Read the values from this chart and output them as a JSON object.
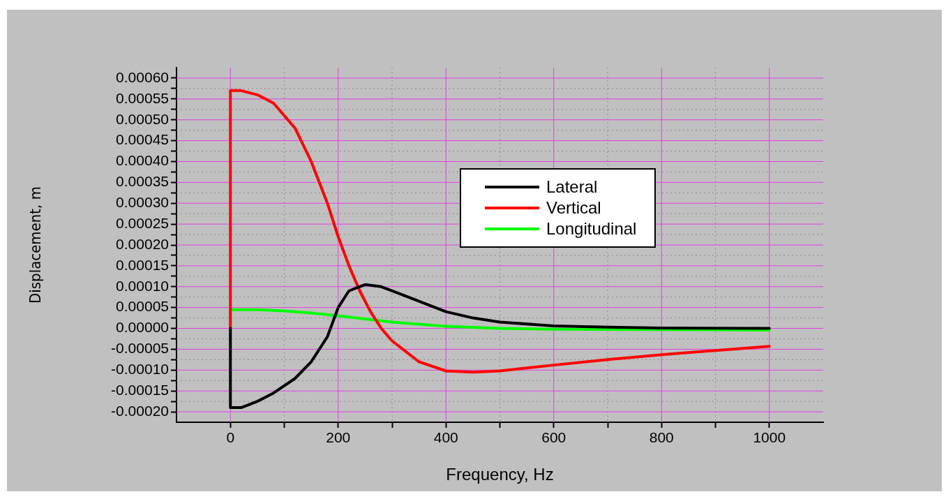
{
  "chart_data": {
    "type": "line",
    "xlabel": "Frequency, Hz",
    "ylabel": "Displacement, m",
    "xlim": [
      -100,
      1100
    ],
    "xticks": [
      0,
      {
        "value": 100,
        "label": null
      },
      200,
      {
        "value": 300,
        "label": null
      },
      400,
      {
        "value": 500,
        "label": null
      },
      600,
      {
        "value": 700,
        "label": null
      },
      800,
      {
        "value": 900,
        "label": null
      },
      1000
    ],
    "ylim": [
      -0.000225,
      0.000625
    ],
    "yticks": [
      {
        "value": -0.0002,
        "label": "-0.00020"
      },
      {
        "value": -0.000175,
        "label": null
      },
      {
        "value": -0.00015,
        "label": "-0.00015"
      },
      {
        "value": -0.000125,
        "label": null
      },
      {
        "value": -0.0001,
        "label": "-0.00010"
      },
      {
        "value": -7.5e-05,
        "label": null
      },
      {
        "value": -5e-05,
        "label": "-0.00005"
      },
      {
        "value": -2.5e-05,
        "label": null
      },
      {
        "value": 0,
        "label": "0.00000"
      },
      {
        "value": 2.5e-05,
        "label": null
      },
      {
        "value": 5e-05,
        "label": "0.00005"
      },
      {
        "value": 7.5e-05,
        "label": null
      },
      {
        "value": 0.0001,
        "label": "0.00010"
      },
      {
        "value": 0.000125,
        "label": null
      },
      {
        "value": 0.00015,
        "label": "0.00015"
      },
      {
        "value": 0.000175,
        "label": null
      },
      {
        "value": 0.0002,
        "label": "0.00020"
      },
      {
        "value": 0.000225,
        "label": null
      },
      {
        "value": 0.00025,
        "label": "0.00025"
      },
      {
        "value": 0.000275,
        "label": null
      },
      {
        "value": 0.0003,
        "label": "0.00030"
      },
      {
        "value": 0.000325,
        "label": null
      },
      {
        "value": 0.00035,
        "label": "0.00035"
      },
      {
        "value": 0.000375,
        "label": null
      },
      {
        "value": 0.0004,
        "label": "0.00040"
      },
      {
        "value": 0.000425,
        "label": null
      },
      {
        "value": 0.00045,
        "label": "0.00045"
      },
      {
        "value": 0.000475,
        "label": null
      },
      {
        "value": 0.0005,
        "label": "0.00050"
      },
      {
        "value": 0.000525,
        "label": null
      },
      {
        "value": 0.00055,
        "label": "0.00055"
      },
      {
        "value": 0.000575,
        "label": null
      },
      {
        "value": 0.0006,
        "label": "0.00060"
      }
    ],
    "grid": true,
    "legend": "right",
    "marker": "none",
    "line_style": "solid",
    "series": [
      {
        "name": "Lateral",
        "color": "#000000",
        "x": [
          0,
          0,
          20,
          50,
          80,
          120,
          150,
          180,
          200,
          220,
          250,
          280,
          320,
          400,
          450,
          500,
          600,
          700,
          800,
          1000
        ],
        "values": [
          0,
          -0.00019,
          -0.00019,
          -0.000175,
          -0.000155,
          -0.00012,
          -8e-05,
          -2e-05,
          5e-05,
          9e-05,
          0.000105,
          0.0001,
          8e-05,
          4e-05,
          2.5e-05,
          1.5e-05,
          6e-06,
          3e-06,
          1e-06,
          0
        ]
      },
      {
        "name": "Vertical",
        "color": "#ff0000",
        "x": [
          0,
          0,
          20,
          50,
          80,
          120,
          150,
          180,
          200,
          220,
          240,
          260,
          280,
          300,
          350,
          400,
          450,
          500,
          600,
          700,
          800,
          900,
          1000
        ],
        "values": [
          0,
          0.00057,
          0.00057,
          0.00056,
          0.00054,
          0.00048,
          0.0004,
          0.0003,
          0.00022,
          0.00015,
          9e-05,
          4e-05,
          0,
          -3e-05,
          -8e-05,
          -0.000102,
          -0.000105,
          -0.000102,
          -8.8e-05,
          -7.5e-05,
          -6.3e-05,
          -5.3e-05,
          -4.3e-05
        ]
      },
      {
        "name": "Longitudinal",
        "color": "#00ff00",
        "x": [
          0,
          0,
          50,
          100,
          150,
          200,
          300,
          400,
          500,
          600,
          800,
          1000
        ],
        "values": [
          0,
          4.5e-05,
          4.5e-05,
          4.2e-05,
          3.7e-05,
          3e-05,
          1.5e-05,
          5e-06,
          0,
          -2e-06,
          -3e-06,
          -4e-06
        ]
      }
    ]
  }
}
